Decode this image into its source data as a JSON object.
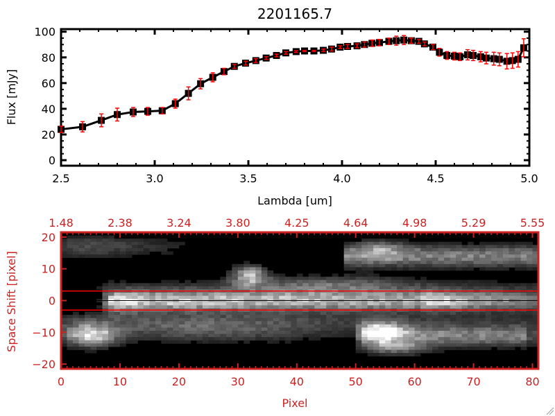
{
  "colors": {
    "spectrum_line": "#000000",
    "error_bar": "#ff0000",
    "image_axes": "#cc2222",
    "aperture_line": "#ff0000",
    "center_line": "#000000"
  },
  "chart_data": [
    {
      "type": "line",
      "title": "2201165.7",
      "xlabel": "Lambda [um]",
      "ylabel": "Flux [mJy]",
      "xlim": [
        2.5,
        5.0
      ],
      "ylim": [
        -4.3,
        102
      ],
      "xticks": [
        "2.5",
        "3.0",
        "3.5",
        "4.0",
        "4.5",
        "5.0"
      ],
      "yticks": [
        "0",
        "20",
        "40",
        "60",
        "80",
        "100"
      ],
      "grid": false,
      "marker": "square",
      "x": [
        2.5,
        2.615,
        2.715,
        2.8,
        2.885,
        2.963,
        3.04,
        3.11,
        3.18,
        3.245,
        3.31,
        3.37,
        3.425,
        3.485,
        3.54,
        3.595,
        3.65,
        3.7,
        3.755,
        3.8,
        3.85,
        3.9,
        3.944,
        3.99,
        4.03,
        4.08,
        4.12,
        4.16,
        4.2,
        4.25,
        4.29,
        4.33,
        4.37,
        4.41,
        4.44,
        4.485,
        4.52,
        4.56,
        4.6,
        4.63,
        4.67,
        4.7,
        4.74,
        4.77,
        4.81,
        4.84,
        4.88,
        4.91,
        4.94,
        4.97
      ],
      "y": [
        24,
        26,
        31,
        35.5,
        37.5,
        38,
        38.5,
        44,
        52,
        59.5,
        64.5,
        69,
        73,
        75.5,
        77.5,
        79.5,
        81.5,
        83.5,
        84.5,
        85,
        85,
        85.5,
        86.5,
        88,
        88.5,
        89,
        90,
        91,
        91.5,
        92.5,
        93,
        93.5,
        93,
        92.5,
        90.5,
        88,
        84,
        81.5,
        81,
        80.5,
        82,
        81.5,
        80.5,
        79.5,
        79,
        78.5,
        77,
        77.5,
        78.5,
        87.5
      ],
      "errors": [
        2.5,
        4,
        5,
        5,
        3.5,
        3,
        2.5,
        3.5,
        5,
        4,
        3.5,
        2.5,
        1.5,
        1.5,
        1.5,
        1,
        1,
        1,
        0.7,
        0.5,
        0.5,
        1,
        1.5,
        1,
        1.5,
        1.5,
        2,
        2.5,
        2.5,
        2.5,
        3.5,
        3.5,
        2,
        1.5,
        1.5,
        2,
        3,
        3,
        3,
        3,
        4,
        4,
        4,
        4.5,
        5,
        5,
        6,
        6,
        6,
        7
      ]
    },
    {
      "type": "heatmap",
      "colormap": "grayscale",
      "xlabel": "Pixel",
      "ylabel": "Space Shift [pixel]",
      "xlim": [
        0,
        81
      ],
      "ylim": [
        -21.5,
        21.5
      ],
      "xticks": [
        "0",
        "10",
        "20",
        "30",
        "40",
        "50",
        "60",
        "70",
        "80"
      ],
      "yticks": [
        "-20",
        "-10",
        "0",
        "10",
        "20"
      ],
      "top_axis_ticks": [
        "1.48",
        "2.38",
        "3.24",
        "3.80",
        "4.25",
        "4.64",
        "4.98",
        "5.29",
        "5.55"
      ],
      "aperture_lines": [
        3,
        -3
      ],
      "center_line": 0
    }
  ]
}
